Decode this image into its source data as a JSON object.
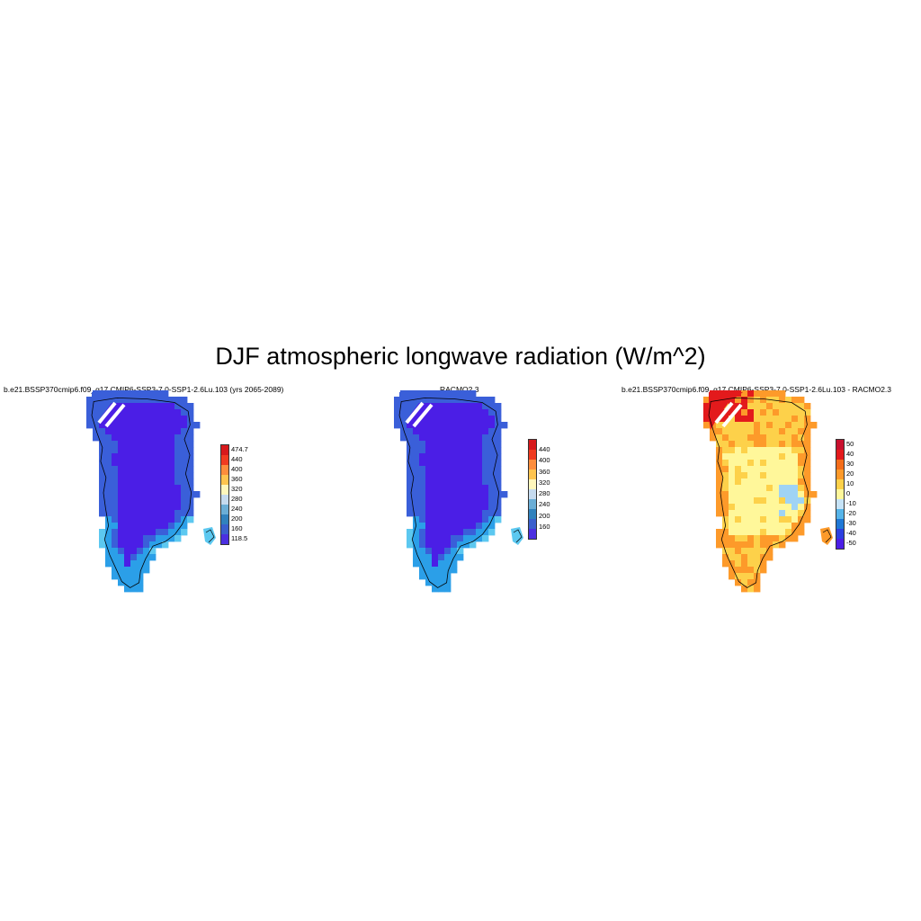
{
  "title": "DJF atmospheric longwave radiation (W/m^2)",
  "panels": [
    {
      "id": "model",
      "title": "b.e21.BSSP370cmip6.f09_g17.CMIP6-SSP3-7.0-SSP1-2.6Lu.103 (yrs 2065-2089)",
      "colorbar": {
        "colors": [
          "#d7191c",
          "#f03b20",
          "#fd8d3c",
          "#fec44f",
          "#fff7bc",
          "#c6dbef",
          "#6baed6",
          "#3182bd",
          "#3a5fcd",
          "#4b2fe0"
        ],
        "labels": [
          "474.7",
          "440",
          "400",
          "360",
          "320",
          "280",
          "240",
          "200",
          "160",
          "118.5"
        ]
      },
      "palette": {
        "interior": "#4b1ee6",
        "margin": "#3a5fd9",
        "coast": "#2b9fe8",
        "edge": "#5cc8f0"
      }
    },
    {
      "id": "obs",
      "title": "RACMO2.3",
      "colorbar": {
        "colors": [
          "#d7191c",
          "#f03b20",
          "#fd8d3c",
          "#fec44f",
          "#fff7bc",
          "#c6dbef",
          "#6baed6",
          "#3182bd",
          "#3a5fcd",
          "#4b2fe0"
        ],
        "labels": [
          "440",
          "400",
          "360",
          "320",
          "280",
          "240",
          "200",
          "160"
        ]
      },
      "palette": {
        "interior": "#4b1ee6",
        "margin": "#3a5fd9",
        "coast": "#2b9fe8",
        "edge": "#5cc8f0"
      }
    },
    {
      "id": "diff",
      "title": "b.e21.BSSP370cmip6.f09_g17.CMIP6-SSP3-7.0-SSP1-2.6Lu.103 - RACMO2.3",
      "colorbar": {
        "colors": [
          "#c8102e",
          "#e31a1c",
          "#f46d1a",
          "#fd9a2a",
          "#fdd14a",
          "#fff79a",
          "#c6e3f7",
          "#56b4e9",
          "#1f78d6",
          "#2c3fe0",
          "#4b1ee6"
        ],
        "labels": [
          "50",
          "40",
          "30",
          "20",
          "10",
          "0",
          "-10",
          "-20",
          "-30",
          "-40",
          "-50"
        ]
      },
      "palette": {
        "interior": "#fff79a",
        "margin": "#fdd14a",
        "coast": "#fd9a2a",
        "edge": "#e31a1c",
        "patch": "#9fd3f5"
      }
    }
  ]
}
